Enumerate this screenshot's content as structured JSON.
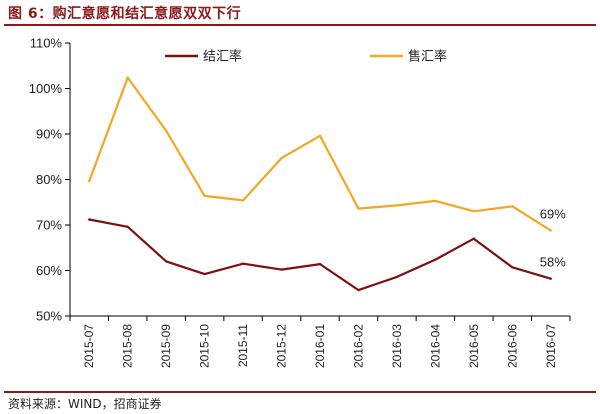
{
  "title": "图 6：购汇意愿和结汇意愿双双下行",
  "source": "资料来源：WIND，招商证券",
  "colors": {
    "accent": "#8B1A1A",
    "settlement": "#7B1113",
    "purchase": "#F5A623"
  },
  "chart_data": {
    "type": "line",
    "categories": [
      "2015-07",
      "2015-08",
      "2015-09",
      "2015-10",
      "2015-11",
      "2015-12",
      "2016-01",
      "2016-02",
      "2016-03",
      "2016-04",
      "2016-05",
      "2016-06",
      "2016-07"
    ],
    "series": [
      {
        "name": "结汇率",
        "color": "#7B1113",
        "values": [
          71.2,
          69.6,
          62.0,
          59.2,
          61.5,
          60.2,
          61.4,
          55.7,
          58.6,
          62.4,
          67.0,
          60.7,
          58.2
        ]
      },
      {
        "name": "售汇率",
        "color": "#F5A623",
        "values": [
          79.6,
          102.4,
          90.7,
          76.4,
          75.4,
          84.7,
          89.6,
          73.6,
          74.3,
          75.3,
          73.0,
          74.1,
          68.8
        ]
      }
    ],
    "ylim": [
      50,
      110
    ],
    "yticks": [
      "50%",
      "60%",
      "70%",
      "80%",
      "90%",
      "100%",
      "110%"
    ],
    "yunit": "%",
    "grid": false,
    "legend": "top",
    "annotations": [
      {
        "series": "售汇率",
        "index": 12,
        "text": "69%"
      },
      {
        "series": "结汇率",
        "index": 12,
        "text": "58%"
      }
    ]
  }
}
